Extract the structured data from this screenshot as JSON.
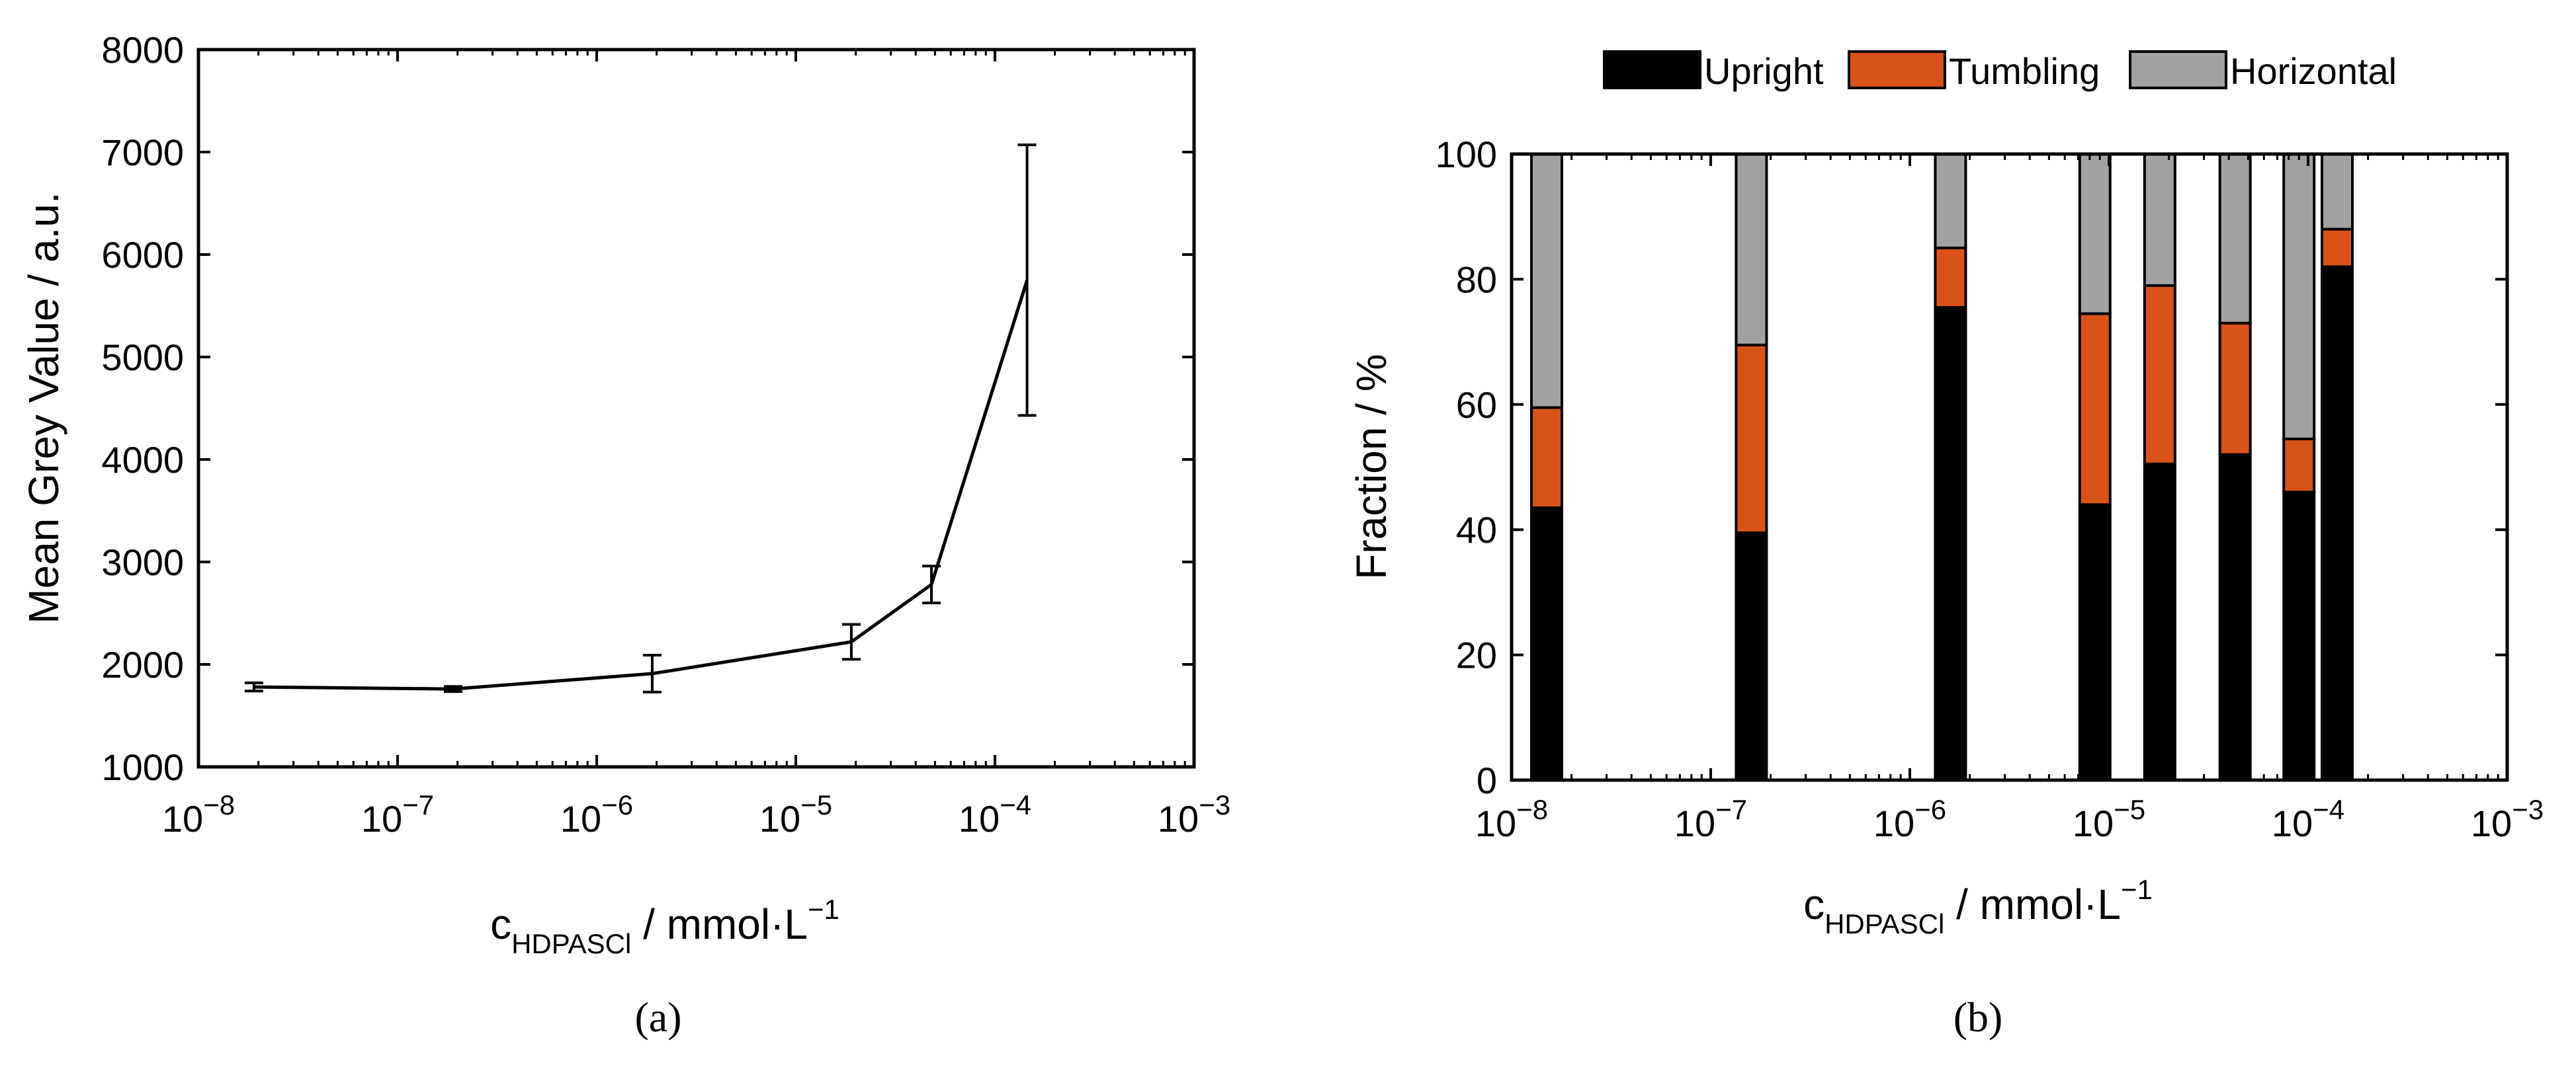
{
  "chart_data": [
    {
      "type": "line",
      "panel_label": "(a)",
      "xscale": "log",
      "xlim": [
        1e-08,
        0.001
      ],
      "ylim": [
        1000,
        8000
      ],
      "x_tick_labels": [
        {
          "base": "10",
          "exp": "−8"
        },
        {
          "base": "10",
          "exp": "−7"
        },
        {
          "base": "10",
          "exp": "−6"
        },
        {
          "base": "10",
          "exp": "−5"
        },
        {
          "base": "10",
          "exp": "−4"
        },
        {
          "base": "10",
          "exp": "−3"
        }
      ],
      "y_ticks": [
        1000,
        2000,
        3000,
        4000,
        5000,
        6000,
        7000,
        8000
      ],
      "y_tick_labels": [
        "1000",
        "2000",
        "3000",
        "4000",
        "5000",
        "6000",
        "7000",
        "8000"
      ],
      "ylabel": "Mean Grey Value / a.u.",
      "xlabel": {
        "main": "c",
        "sub": "HDPASCl",
        "rest": " / mmol·L",
        "sup": "−1"
      },
      "x": [
        1.9e-08,
        1.9e-07,
        1.9e-06,
        1.9e-05,
        4.8e-05,
        0.000145
      ],
      "y": [
        1780,
        1760,
        1910,
        2220,
        2780,
        5750
      ],
      "err": [
        40,
        25,
        180,
        170,
        180,
        1320
      ]
    },
    {
      "type": "bar",
      "stacked": true,
      "panel_label": "(b)",
      "xscale": "log",
      "xlim": [
        1e-08,
        0.001
      ],
      "ylim": [
        0,
        100
      ],
      "x_tick_labels": [
        {
          "base": "10",
          "exp": "−8"
        },
        {
          "base": "10",
          "exp": "−7"
        },
        {
          "base": "10",
          "exp": "−6"
        },
        {
          "base": "10",
          "exp": "−5"
        },
        {
          "base": "10",
          "exp": "−4"
        },
        {
          "base": "10",
          "exp": "−3"
        }
      ],
      "y_ticks": [
        0,
        20,
        40,
        60,
        80,
        100
      ],
      "y_tick_labels": [
        "0",
        "20",
        "40",
        "60",
        "80",
        "100"
      ],
      "ylabel": "Fraction / %",
      "xlabel": {
        "main": "c",
        "sub": "HDPASCl",
        "rest": " / mmol·L",
        "sup": "−1"
      },
      "x": [
        1.5e-08,
        1.6e-07,
        1.6e-06,
        8.5e-06,
        1.8e-05,
        4.3e-05,
        9e-05,
        0.00014
      ],
      "series": [
        {
          "name": "Upright",
          "color": "#000000",
          "values": [
            43.5,
            39.5,
            75.5,
            44,
            50.5,
            52,
            46,
            82
          ]
        },
        {
          "name": "Tumbling",
          "color": "#d95319",
          "values": [
            16,
            30,
            9.5,
            30.5,
            28.5,
            21,
            8.5,
            6
          ]
        },
        {
          "name": "Horizontal",
          "color": "#a2a2a2",
          "values": [
            40.5,
            30.5,
            15,
            25.5,
            21,
            27,
            45.5,
            12
          ]
        }
      ],
      "legend_position": "top"
    }
  ]
}
